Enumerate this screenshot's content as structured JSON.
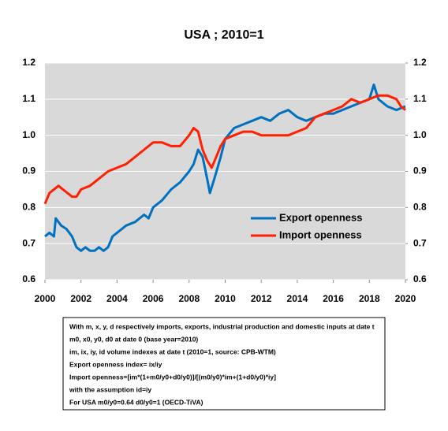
{
  "chart_data": {
    "type": "line",
    "title": "USA ; 2010=1",
    "xlim": [
      2000,
      2020
    ],
    "xticks": [
      2000,
      2002,
      2004,
      2006,
      2008,
      2010,
      2012,
      2014,
      2016,
      2018,
      2020
    ],
    "ylim": [
      0.6,
      1.2
    ],
    "yticks": [
      0.6,
      0.7,
      0.8,
      0.9,
      {
        "value": 1,
        "label": "1.0"
      },
      1.1,
      1.2
    ],
    "y2lim": [
      0.6,
      1.2
    ],
    "y2ticks": [
      0.6,
      0.7,
      0.8,
      0.9,
      {
        "value": 1,
        "label": "1.0"
      },
      1.1,
      1.2
    ],
    "grid": true,
    "legend": "lower-right",
    "series": [
      {
        "name": "Export openness",
        "color": "#0070c0",
        "x": [
          2000,
          2000.25,
          2000.5,
          2000.6,
          2000.9,
          2001.2,
          2001.5,
          2001.75,
          2002,
          2002.25,
          2002.5,
          2002.75,
          2003,
          2003.25,
          2003.5,
          2003.75,
          2004,
          2004.5,
          2005,
          2005.5,
          2005.75,
          2006,
          2006.5,
          2007,
          2007.5,
          2008,
          2008.25,
          2008.5,
          2008.75,
          2009,
          2009.15,
          2009.4,
          2009.75,
          2010,
          2010.5,
          2011,
          2011.5,
          2012,
          2012.5,
          2013,
          2013.5,
          2014,
          2014.5,
          2015,
          2015.5,
          2016,
          2016.5,
          2017,
          2017.5,
          2018,
          2018.25,
          2018.5,
          2019,
          2019.5,
          2020
        ],
        "values": [
          0.72,
          0.73,
          0.72,
          0.77,
          0.75,
          0.74,
          0.72,
          0.69,
          0.68,
          0.69,
          0.68,
          0.68,
          0.69,
          0.68,
          0.69,
          0.72,
          0.73,
          0.75,
          0.76,
          0.78,
          0.77,
          0.8,
          0.82,
          0.85,
          0.87,
          0.9,
          0.92,
          0.96,
          0.94,
          0.88,
          0.84,
          0.88,
          0.94,
          0.99,
          1.02,
          1.03,
          1.04,
          1.05,
          1.04,
          1.06,
          1.07,
          1.05,
          1.04,
          1.05,
          1.06,
          1.06,
          1.07,
          1.08,
          1.09,
          1.1,
          1.14,
          1.1,
          1.08,
          1.07,
          1.08
        ]
      },
      {
        "name": "Import openness",
        "color": "#ff2000",
        "x": [
          2000,
          2000.25,
          2000.5,
          2000.75,
          2001,
          2001.25,
          2001.5,
          2001.75,
          2002,
          2002.5,
          2003,
          2003.5,
          2004,
          2004.5,
          2005,
          2005.5,
          2006,
          2006.5,
          2007,
          2007.5,
          2008,
          2008.25,
          2008.5,
          2008.75,
          2009,
          2009.25,
          2009.5,
          2009.75,
          2010,
          2010.5,
          2011,
          2011.5,
          2012,
          2012.5,
          2013,
          2013.5,
          2014,
          2014.5,
          2015,
          2015.5,
          2016,
          2016.5,
          2017,
          2017.5,
          2018,
          2018.5,
          2019,
          2019.5,
          2019.75,
          2020
        ],
        "values": [
          0.81,
          0.84,
          0.85,
          0.86,
          0.85,
          0.84,
          0.83,
          0.83,
          0.85,
          0.86,
          0.88,
          0.9,
          0.91,
          0.92,
          0.94,
          0.96,
          0.98,
          0.98,
          0.97,
          0.97,
          1.0,
          1.02,
          1.01,
          0.96,
          0.93,
          0.91,
          0.94,
          0.97,
          0.99,
          1.0,
          1.01,
          1.01,
          1.0,
          1.0,
          1.0,
          1.0,
          1.01,
          1.02,
          1.05,
          1.06,
          1.07,
          1.08,
          1.1,
          1.09,
          1.1,
          1.11,
          1.11,
          1.1,
          1.08,
          1.07
        ]
      }
    ],
    "note": [
      "With m, x, y, d respectively imports, exports, industrial production and domestic inputs at date t",
      "m0, x0, y0, d0 at date 0 (base year=2010)",
      "im, ix, iy, id volume indexes at date t (2010=1, source: CPB-WTM)",
      "Export openness index= ix/iy",
      "Import openness=[im*(1+m0/y0+d0/y0)]/[(m0/y0)*im+(1+d0/y0)*iy]",
      "with the assumption id=iy",
      "For USA m0/y0=0.64 d0/y0=1 (OECD-TiVA)"
    ]
  }
}
